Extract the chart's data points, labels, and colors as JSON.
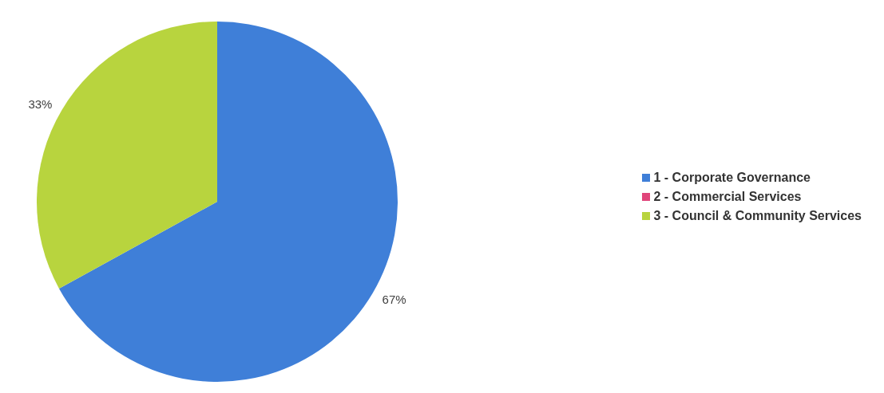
{
  "chart_data": {
    "type": "pie",
    "categories": [
      "1 - Corporate Governance",
      "2 - Commercial Services",
      "3 - Council & Community Services"
    ],
    "values": [
      67,
      0,
      33
    ],
    "colors": [
      "#3f7fd8",
      "#e0457a",
      "#b8d43e"
    ],
    "value_labels": [
      "67%",
      null,
      "33%"
    ],
    "legend": "right"
  }
}
